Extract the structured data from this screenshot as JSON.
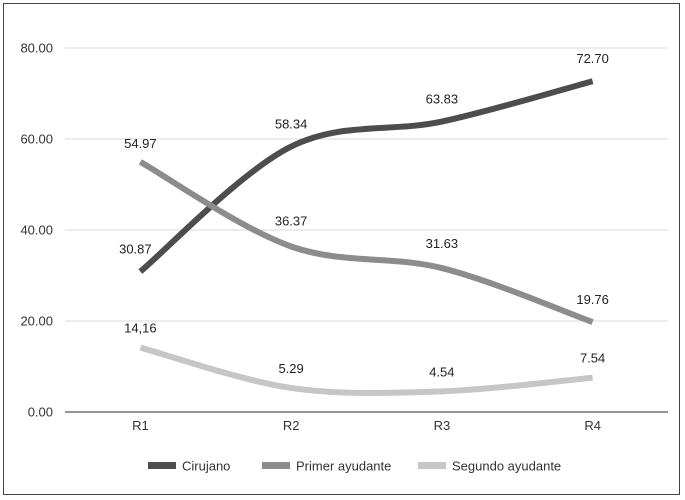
{
  "chart_data": {
    "type": "line",
    "categories": [
      "R1",
      "R2",
      "R3",
      "R4"
    ],
    "ylim": [
      0,
      80
    ],
    "yticks": [
      "0.00",
      "20.00",
      "40.00",
      "60.00",
      "80.00"
    ],
    "grid": true,
    "legend_position": "bottom",
    "series": [
      {
        "name": "Cirujano",
        "color": "#4d4d4d",
        "values": [
          30.87,
          58.34,
          63.83,
          72.7
        ],
        "labels": [
          "30.87",
          "58.34",
          "63.83",
          "72.70"
        ]
      },
      {
        "name": "Primer ayudante",
        "color": "#8c8c8c",
        "values": [
          54.97,
          36.37,
          31.63,
          19.76
        ],
        "labels": [
          "54.97",
          "36.37",
          "31.63",
          "19.76"
        ]
      },
      {
        "name": "Segundo ayudante",
        "color": "#c6c6c6",
        "values": [
          14.16,
          5.29,
          4.54,
          7.54
        ],
        "labels": [
          "14,16",
          "5.29",
          "4.54",
          "7.54"
        ]
      }
    ]
  }
}
